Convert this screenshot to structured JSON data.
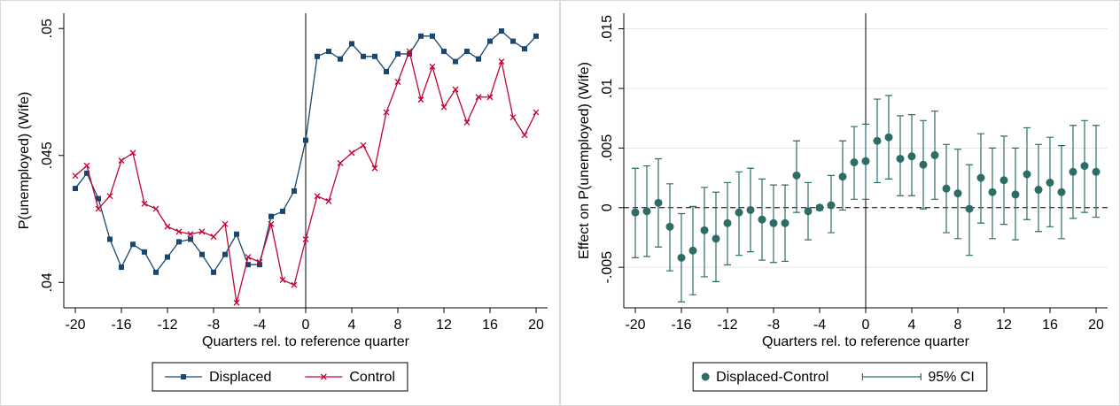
{
  "chart_data": [
    {
      "type": "line",
      "x": [
        -20,
        -19,
        -18,
        -17,
        -16,
        -15,
        -14,
        -13,
        -12,
        -11,
        -10,
        -9,
        -8,
        -7,
        -6,
        -5,
        -4,
        -3,
        -2,
        -1,
        0,
        1,
        2,
        3,
        4,
        5,
        6,
        7,
        8,
        9,
        10,
        11,
        12,
        13,
        14,
        15,
        16,
        17,
        18,
        19,
        20
      ],
      "series": [
        {
          "name": "Displaced",
          "color": "#1a476f",
          "marker": "square",
          "values": [
            0.0437,
            0.0443,
            0.0433,
            0.0417,
            0.0406,
            0.0415,
            0.0412,
            0.0404,
            0.041,
            0.0416,
            0.0417,
            0.0411,
            0.0404,
            0.0411,
            0.0419,
            0.0407,
            0.0407,
            0.0426,
            0.0428,
            0.0436,
            0.0456,
            0.0489,
            0.0491,
            0.0488,
            0.0494,
            0.0489,
            0.0489,
            0.0483,
            0.049,
            0.049,
            0.0497,
            0.0497,
            0.0491,
            0.0487,
            0.0491,
            0.0488,
            0.0495,
            0.0499,
            0.0495,
            0.0492,
            0.0497
          ]
        },
        {
          "name": "Control",
          "color": "#c10534",
          "marker": "x",
          "values": [
            0.0442,
            0.0446,
            0.0429,
            0.0434,
            0.0448,
            0.0451,
            0.0431,
            0.0429,
            0.0422,
            0.042,
            0.0419,
            0.042,
            0.0418,
            0.0423,
            0.0392,
            0.041,
            0.0408,
            0.0423,
            0.0401,
            0.0399,
            0.0417,
            0.0434,
            0.0432,
            0.0447,
            0.0451,
            0.0454,
            0.0445,
            0.0467,
            0.0479,
            0.0491,
            0.0472,
            0.0485,
            0.0469,
            0.0476,
            0.0463,
            0.0473,
            0.0473,
            0.0487,
            0.0465,
            0.0458,
            0.0467
          ]
        }
      ],
      "xlabel": "Quarters rel. to reference quarter",
      "ylabel": "P(unemployed) (Wife)",
      "xlim": [
        -21,
        21
      ],
      "xticks": [
        -20,
        -16,
        -12,
        -8,
        -4,
        0,
        4,
        8,
        12,
        16,
        20
      ],
      "ylim": [
        0.039,
        0.0506
      ],
      "yticks": [
        {
          "value": 0.04,
          "label": ".04"
        },
        {
          "value": 0.045,
          "label": ".045"
        },
        {
          "value": 0.05,
          "label": ".05"
        }
      ],
      "vline": 0,
      "grid": false
    },
    {
      "type": "errorbar",
      "x": [
        -20,
        -19,
        -18,
        -17,
        -16,
        -15,
        -14,
        -13,
        -12,
        -11,
        -10,
        -9,
        -8,
        -7,
        -6,
        -5,
        -4,
        -3,
        -2,
        -1,
        0,
        1,
        2,
        3,
        4,
        5,
        6,
        7,
        8,
        9,
        10,
        11,
        12,
        13,
        14,
        15,
        16,
        17,
        18,
        19,
        20
      ],
      "series": [
        {
          "name": "Displaced-Control",
          "color": "#2d6d66",
          "marker": "circle",
          "values": [
            -0.0004,
            -0.0003,
            0.0004,
            -0.0016,
            -0.0042,
            -0.0036,
            -0.0019,
            -0.0026,
            -0.0013,
            -0.0004,
            -0.0002,
            -0.001,
            -0.0013,
            -0.0013,
            0.0027,
            -0.0003,
            0,
            0.0002,
            0.0026,
            0.0038,
            0.0039,
            0.0056,
            0.0059,
            0.0041,
            0.0043,
            0.0036,
            0.0044,
            0.0016,
            0.0012,
            -0.0001,
            0.0025,
            0.0013,
            0.0023,
            0.0011,
            0.0028,
            0.0015,
            0.0021,
            0.0013,
            0.003,
            0.0035,
            0.003
          ]
        },
        {
          "name": "95% CI",
          "color": "#2d6d66",
          "marker": "capped-line",
          "lower": [
            -0.0042,
            -0.0041,
            -0.0033,
            -0.0053,
            -0.0079,
            -0.0073,
            -0.0058,
            -0.0062,
            -0.0048,
            -0.004,
            -0.0037,
            -0.0044,
            -0.0046,
            -0.0045,
            -0.0004,
            -0.0027,
            -0.0002,
            -0.0021,
            -0.0002,
            0.0007,
            0.0007,
            0.0021,
            0.0024,
            0.001,
            0.001,
            -0.0001,
            0.0007,
            -0.0021,
            -0.0026,
            -0.004,
            -0.0013,
            -0.0026,
            -0.0014,
            -0.0027,
            -0.001,
            -0.002,
            -0.0016,
            -0.0026,
            -0.0009,
            -0.0004,
            -0.0008
          ],
          "upper": [
            0.0033,
            0.0035,
            0.0041,
            0.002,
            -0.0005,
            0.0001,
            0.0017,
            0.0013,
            0.0021,
            0.003,
            0.0033,
            0.0024,
            0.0019,
            0.0019,
            0.0056,
            0.0021,
            0.0002,
            0.0027,
            0.0056,
            0.0068,
            0.007,
            0.0091,
            0.0094,
            0.0077,
            0.0078,
            0.0073,
            0.0081,
            0.0053,
            0.0049,
            0.0036,
            0.0062,
            0.005,
            0.006,
            0.005,
            0.0067,
            0.0053,
            0.0059,
            0.0052,
            0.0069,
            0.0073,
            0.0069
          ]
        }
      ],
      "xlabel": "Quarters rel. to reference quarter",
      "ylabel": "Effect on P(unemployed) (Wife)",
      "xlim": [
        -21,
        21
      ],
      "xticks": [
        -20,
        -16,
        -12,
        -8,
        -4,
        0,
        4,
        8,
        12,
        16,
        20
      ],
      "ylim": [
        -0.0084,
        0.0163
      ],
      "yticks": [
        {
          "value": -0.005,
          "label": "-.005"
        },
        {
          "value": 0,
          "label": "0"
        },
        {
          "value": 0.005,
          "label": ".005"
        },
        {
          "value": 0.01,
          "label": ".01"
        },
        {
          "value": 0.015,
          "label": ".015"
        }
      ],
      "vline": 0,
      "hline": 0,
      "grid": true
    }
  ]
}
